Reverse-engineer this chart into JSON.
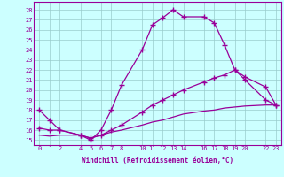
{
  "line1_x": [
    0,
    1,
    2,
    4,
    5,
    6,
    7,
    8,
    10,
    11,
    12,
    13,
    14,
    16,
    17,
    18,
    19,
    20,
    22,
    23
  ],
  "line1_y": [
    18,
    17,
    16,
    15.5,
    15,
    16,
    18,
    20.5,
    24,
    26.5,
    27.2,
    28,
    27.3,
    27.3,
    26.7,
    24.5,
    22,
    21,
    19,
    18.5
  ],
  "line2_x": [
    0,
    1,
    2,
    4,
    5,
    6,
    7,
    8,
    10,
    11,
    12,
    13,
    14,
    16,
    17,
    18,
    19,
    20,
    22,
    23
  ],
  "line2_y": [
    16.2,
    16.0,
    16.0,
    15.5,
    15.2,
    15.5,
    16.0,
    16.5,
    17.8,
    18.5,
    19.0,
    19.5,
    20.0,
    20.8,
    21.2,
    21.5,
    22.0,
    21.3,
    20.3,
    18.5
  ],
  "line3_x": [
    0,
    1,
    2,
    4,
    5,
    6,
    7,
    8,
    10,
    11,
    12,
    13,
    14,
    16,
    17,
    18,
    19,
    20,
    22,
    23
  ],
  "line3_y": [
    15.5,
    15.4,
    15.5,
    15.5,
    15.2,
    15.5,
    15.8,
    16.0,
    16.5,
    16.8,
    17.0,
    17.3,
    17.6,
    17.9,
    18.0,
    18.2,
    18.3,
    18.4,
    18.5,
    18.5
  ],
  "color": "#990099",
  "bg_color": "#ccffff",
  "grid_color": "#99cccc",
  "xlabel": "Windchill (Refroidissement éolien,°C)",
  "xticks": [
    0,
    1,
    2,
    4,
    5,
    6,
    7,
    8,
    10,
    11,
    12,
    13,
    14,
    16,
    17,
    18,
    19,
    20,
    22,
    23
  ],
  "xtick_labels": [
    "0",
    "1",
    "2",
    "4",
    "5",
    "6",
    "7",
    "8",
    "10",
    "11",
    "12",
    "13",
    "14",
    "16",
    "17",
    "18",
    "19",
    "20",
    "22",
    "23"
  ],
  "yticks": [
    15,
    16,
    17,
    18,
    19,
    20,
    21,
    22,
    23,
    24,
    25,
    26,
    27,
    28
  ],
  "ylim": [
    14.5,
    28.8
  ],
  "xlim": [
    -0.5,
    23.5
  ]
}
